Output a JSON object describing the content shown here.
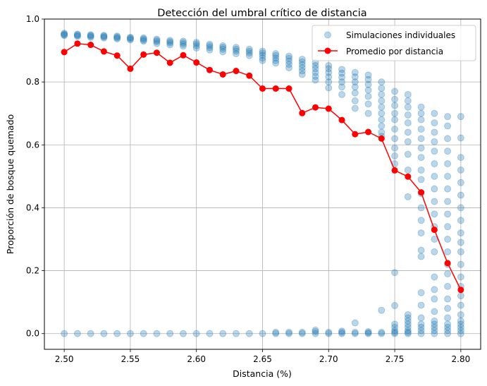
{
  "chart_data": {
    "type": "scatter",
    "title": "Detección del umbral crítico de distancia",
    "xlabel": "Distancia (%)",
    "ylabel": "Proporción de bosque quemado",
    "xlim": [
      2.485,
      2.815
    ],
    "ylim": [
      -0.05,
      1.0
    ],
    "x_ticks": [
      "2.50",
      "2.55",
      "2.60",
      "2.65",
      "2.70",
      "2.75",
      "2.80"
    ],
    "y_ticks": [
      "0.0",
      "0.2",
      "0.4",
      "0.6",
      "0.8",
      "1.0"
    ],
    "grid": true,
    "legend_position": "top-right",
    "colors": {
      "scatter": "#1f77b4",
      "mean_line": "#ff0000"
    },
    "series": [
      {
        "name": "Simulaciones individuales",
        "kind": "scatter",
        "points_by_distance": [
          {
            "x": 2.5,
            "y": [
              0.955,
              0.952,
              0.95,
              0.948,
              0.0
            ]
          },
          {
            "x": 2.51,
            "y": [
              0.952,
              0.95,
              0.947,
              0.945,
              0.0
            ]
          },
          {
            "x": 2.52,
            "y": [
              0.95,
              0.948,
              0.945,
              0.942,
              0.0
            ]
          },
          {
            "x": 2.53,
            "y": [
              0.948,
              0.946,
              0.943,
              0.94,
              0.0
            ]
          },
          {
            "x": 2.54,
            "y": [
              0.946,
              0.943,
              0.94,
              0.937,
              0.0
            ]
          },
          {
            "x": 2.55,
            "y": [
              0.942,
              0.94,
              0.937,
              0.934,
              0.0
            ]
          },
          {
            "x": 2.56,
            "y": [
              0.94,
              0.937,
              0.933,
              0.93,
              0.0
            ]
          },
          {
            "x": 2.57,
            "y": [
              0.936,
              0.932,
              0.928,
              0.922,
              0.0
            ]
          },
          {
            "x": 2.58,
            "y": [
              0.932,
              0.928,
              0.924,
              0.918,
              0.0
            ]
          },
          {
            "x": 2.59,
            "y": [
              0.93,
              0.925,
              0.92,
              0.914,
              0.0
            ]
          },
          {
            "x": 2.6,
            "y": [
              0.926,
              0.921,
              0.915,
              0.908,
              0.0
            ]
          },
          {
            "x": 2.61,
            "y": [
              0.92,
              0.915,
              0.909,
              0.902,
              0.0
            ]
          },
          {
            "x": 2.62,
            "y": [
              0.915,
              0.91,
              0.904,
              0.896,
              0.0
            ]
          },
          {
            "x": 2.63,
            "y": [
              0.91,
              0.904,
              0.898,
              0.89,
              0.0
            ]
          },
          {
            "x": 2.64,
            "y": [
              0.904,
              0.898,
              0.892,
              0.884,
              0.0
            ]
          },
          {
            "x": 2.65,
            "y": [
              0.898,
              0.892,
              0.885,
              0.876,
              0.868,
              0.0
            ]
          },
          {
            "x": 2.66,
            "y": [
              0.89,
              0.884,
              0.876,
              0.868,
              0.86,
              0.0,
              0.004
            ]
          },
          {
            "x": 2.67,
            "y": [
              0.882,
              0.875,
              0.866,
              0.856,
              0.845,
              0.0,
              0.004
            ]
          },
          {
            "x": 2.68,
            "y": [
              0.872,
              0.864,
              0.855,
              0.845,
              0.835,
              0.824,
              0.0,
              0.004
            ]
          },
          {
            "x": 2.69,
            "y": [
              0.862,
              0.852,
              0.842,
              0.83,
              0.818,
              0.806,
              0.0,
              0.006,
              0.011
            ]
          },
          {
            "x": 2.7,
            "y": [
              0.852,
              0.842,
              0.83,
              0.816,
              0.8,
              0.781,
              0.0,
              0.004
            ]
          },
          {
            "x": 2.71,
            "y": [
              0.84,
              0.828,
              0.815,
              0.8,
              0.784,
              0.76,
              0.0,
              0.004,
              0.008
            ]
          },
          {
            "x": 2.72,
            "y": [
              0.83,
              0.816,
              0.8,
              0.784,
              0.765,
              0.74,
              0.716,
              0.0,
              0.004,
              0.034
            ]
          },
          {
            "x": 2.73,
            "y": [
              0.822,
              0.808,
              0.792,
              0.774,
              0.754,
              0.73,
              0.7,
              0.0,
              0.003,
              0.006
            ]
          },
          {
            "x": 2.74,
            "y": [
              0.8,
              0.78,
              0.76,
              0.74,
              0.72,
              0.7,
              0.68,
              0.66,
              0.64,
              0.627,
              0.0,
              0.004,
              0.074
            ]
          },
          {
            "x": 2.75,
            "y": [
              0.77,
              0.745,
              0.725,
              0.7,
              0.68,
              0.65,
              0.62,
              0.59,
              0.565,
              0.54,
              0.194,
              0.089,
              0.0,
              0.004,
              0.01,
              0.02,
              0.03
            ]
          },
          {
            "x": 2.76,
            "y": [
              0.76,
              0.74,
              0.72,
              0.695,
              0.67,
              0.64,
              0.61,
              0.57,
              0.52,
              0.435,
              0.0,
              0.004,
              0.01,
              0.02,
              0.03,
              0.04,
              0.05,
              0.06
            ]
          },
          {
            "x": 2.77,
            "y": [
              0.72,
              0.7,
              0.68,
              0.65,
              0.62,
              0.59,
              0.56,
              0.52,
              0.49,
              0.445,
              0.4,
              0.36,
              0.32,
              0.265,
              0.245,
              0.13,
              0.09,
              0.05,
              0.03,
              0.0,
              0.01,
              0.02
            ]
          },
          {
            "x": 2.78,
            "y": [
              0.7,
              0.67,
              0.64,
              0.61,
              0.58,
              0.54,
              0.5,
              0.46,
              0.42,
              0.38,
              0.34,
              0.3,
              0.26,
              0.18,
              0.14,
              0.11,
              0.07,
              0.04,
              0.0,
              0.01,
              0.02,
              0.03
            ]
          },
          {
            "x": 2.79,
            "y": [
              0.69,
              0.66,
              0.62,
              0.58,
              0.54,
              0.5,
              0.46,
              0.42,
              0.38,
              0.34,
              0.3,
              0.26,
              0.22,
              0.19,
              0.15,
              0.11,
              0.08,
              0.05,
              0.03,
              0.0,
              0.01,
              0.02
            ]
          },
          {
            "x": 2.8,
            "y": [
              0.69,
              0.622,
              0.56,
              0.52,
              0.48,
              0.44,
              0.4,
              0.36,
              0.32,
              0.29,
              0.26,
              0.22,
              0.18,
              0.15,
              0.12,
              0.09,
              0.06,
              0.04,
              0.02,
              0.0,
              0.01,
              0.03
            ]
          }
        ]
      },
      {
        "name": "Promedio por distancia",
        "kind": "line",
        "x": [
          2.5,
          2.51,
          2.52,
          2.53,
          2.54,
          2.55,
          2.56,
          2.57,
          2.58,
          2.59,
          2.6,
          2.61,
          2.62,
          2.63,
          2.64,
          2.65,
          2.66,
          2.67,
          2.68,
          2.69,
          2.7,
          2.71,
          2.72,
          2.73,
          2.74,
          2.75,
          2.76,
          2.77,
          2.78,
          2.79,
          2.8
        ],
        "y": [
          0.895,
          0.922,
          0.918,
          0.897,
          0.884,
          0.842,
          0.887,
          0.893,
          0.861,
          0.885,
          0.862,
          0.838,
          0.824,
          0.835,
          0.82,
          0.779,
          0.779,
          0.779,
          0.701,
          0.719,
          0.715,
          0.679,
          0.634,
          0.641,
          0.62,
          0.519,
          0.499,
          0.449,
          0.33,
          0.224,
          0.139
        ]
      }
    ]
  }
}
